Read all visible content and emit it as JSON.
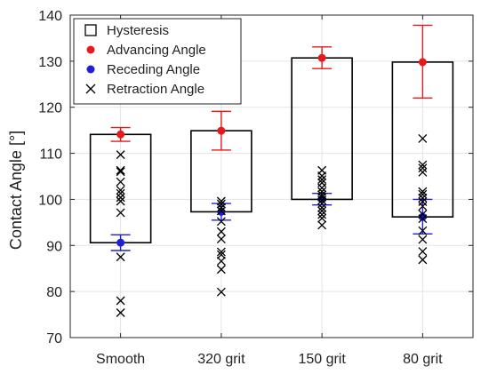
{
  "chart_data": {
    "type": "box-scatter",
    "title": "",
    "xlabel": "",
    "ylabel": "Contact Angle [°]",
    "ylim": [
      70,
      140
    ],
    "yticks": [
      70,
      80,
      90,
      100,
      110,
      120,
      130,
      140
    ],
    "grid": true,
    "legend_position": "top-left",
    "categories": [
      "Smooth",
      "320 grit",
      "150 grit",
      "80 grit"
    ],
    "legend": [
      {
        "key": "hysteresis",
        "label": "Hysteresis",
        "marker": "square-open",
        "color": "#000000"
      },
      {
        "key": "advancing",
        "label": "Advancing Angle",
        "marker": "dot",
        "color": "#e41a1c"
      },
      {
        "key": "receding",
        "label": "Receding Angle",
        "marker": "dot",
        "color": "#1f1fd6"
      },
      {
        "key": "retraction",
        "label": "Retraction Angle",
        "marker": "x",
        "color": "#000000"
      }
    ],
    "hysteresis_boxes": [
      {
        "category": "Smooth",
        "low": 90.6,
        "high": 114.1
      },
      {
        "category": "320 grit",
        "low": 97.3,
        "high": 114.9
      },
      {
        "category": "150 grit",
        "low": 100.0,
        "high": 130.7
      },
      {
        "category": "80 grit",
        "low": 96.2,
        "high": 129.8
      }
    ],
    "advancing": [
      {
        "category": "Smooth",
        "mean": 114.1,
        "err_low": 112.6,
        "err_high": 115.6
      },
      {
        "category": "320 grit",
        "mean": 114.9,
        "err_low": 110.7,
        "err_high": 119.1
      },
      {
        "category": "150 grit",
        "mean": 130.7,
        "err_low": 128.4,
        "err_high": 133.1
      },
      {
        "category": "80 grit",
        "mean": 129.8,
        "err_low": 122.0,
        "err_high": 137.8
      }
    ],
    "receding": [
      {
        "category": "Smooth",
        "mean": 90.6,
        "err_low": 88.9,
        "err_high": 92.3
      },
      {
        "category": "320 grit",
        "mean": 97.3,
        "err_low": 95.5,
        "err_high": 99.1
      },
      {
        "category": "150 grit",
        "mean": 100.0,
        "err_low": 98.8,
        "err_high": 101.3
      },
      {
        "category": "80 grit",
        "mean": 96.2,
        "err_low": 92.5,
        "err_high": 100.0
      }
    ],
    "retraction": [
      {
        "category": "Smooth",
        "values": [
          109.7,
          106.3,
          106.0,
          103.8,
          102.0,
          101.3,
          100.4,
          99.6,
          97.1,
          87.5,
          78.0,
          75.4
        ]
      },
      {
        "category": "320 grit",
        "values": [
          99.6,
          99.0,
          98.2,
          97.5,
          95.2,
          93.0,
          91.4,
          88.6,
          88.0,
          86.6,
          84.8,
          79.9
        ]
      },
      {
        "category": "150 grit",
        "values": [
          106.3,
          105.1,
          104.3,
          103.6,
          102.5,
          101.7,
          101.0,
          100.5,
          99.8,
          99.1,
          98.2,
          97.5,
          96.7,
          95.9,
          94.4
        ]
      },
      {
        "category": "80 grit",
        "values": [
          113.2,
          107.5,
          106.8,
          105.9,
          101.7,
          101.1,
          100.3,
          99.5,
          98.5,
          96.8,
          95.8,
          93.2,
          91.3,
          88.7,
          86.9
        ]
      }
    ]
  }
}
